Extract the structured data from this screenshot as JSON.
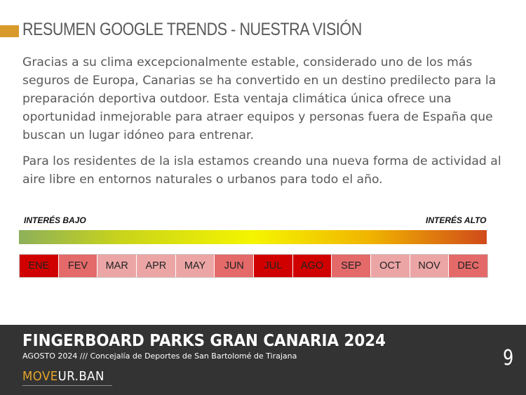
{
  "slide": {
    "title": "RESUMEN GOOGLE TRENDS - NUESTRA VISIÓN",
    "paragraphs": [
      "Gracias a su clima excepcionalmente estable, considerado uno de los más seguros de Europa, Canarias se ha convertido en un destino predilecto para la preparación deportiva outdoor. Esta ventaja climática única ofrece una oportunidad inmejorable para atraer equipos y personas fuera de España que buscan un lugar idóneo para entrenar.",
      "Para los residentes de la isla estamos creando una nueva forma de actividad al aire libre en entornos naturales o urbanos para todo el año."
    ]
  },
  "scale": {
    "low_label": "INTERÉS BAJO",
    "high_label": "INTERÉS ALTO",
    "gradient_colors": [
      "#8db05a",
      "#c9d41a",
      "#f5f500",
      "#f0b400",
      "#d04a1a"
    ]
  },
  "months": [
    {
      "label": "ENE",
      "color": "#d00000"
    },
    {
      "label": "FEV",
      "color": "#e46a6a"
    },
    {
      "label": "MAR",
      "color": "#eca5a5"
    },
    {
      "label": "APR",
      "color": "#eca5a5"
    },
    {
      "label": "MAY",
      "color": "#eca5a5"
    },
    {
      "label": "JUN",
      "color": "#e46a6a"
    },
    {
      "label": "JUL",
      "color": "#d00000"
    },
    {
      "label": "AGO",
      "color": "#d00000"
    },
    {
      "label": "SEP",
      "color": "#e46a6a"
    },
    {
      "label": "OCT",
      "color": "#eca5a5"
    },
    {
      "label": "NOV",
      "color": "#eca5a5"
    },
    {
      "label": "DEC",
      "color": "#e46a6a"
    }
  ],
  "footer": {
    "title": "FINGERBOARD PARKS GRAN CANARIA 2024",
    "subtitle": "AGOSTO 2024 /// Concejalía de Deportes de San Bartolomé de Tirajana",
    "brand_part1": "MOVE",
    "brand_part2": "UR.BAN",
    "page_number": "9"
  },
  "colors": {
    "accent": "#d79a2b",
    "footer_bg": "#333333",
    "text": "#595959"
  }
}
